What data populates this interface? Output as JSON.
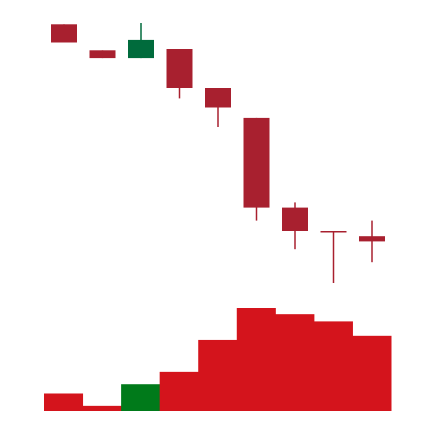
{
  "chart_data": {
    "type": "candlestick",
    "title": "",
    "xlabel": "",
    "ylabel": "",
    "grid": false,
    "legend": "none",
    "colors": {
      "up": "#006b3c",
      "down": "#a8202f",
      "volume_up": "#007a1a",
      "volume_down": "#d4141c"
    },
    "price_range": [
      0,
      100
    ],
    "candles": [
      {
        "open": 99.5,
        "high": 99.5,
        "low": 92.5,
        "close": 92.5
      },
      {
        "open": 89.5,
        "high": 89.5,
        "low": 86.5,
        "close": 86.5
      },
      {
        "open": 86.5,
        "high": 100.0,
        "low": 86.5,
        "close": 93.5
      },
      {
        "open": 90.0,
        "high": 90.0,
        "low": 71.0,
        "close": 75.0
      },
      {
        "open": 75.0,
        "high": 75.0,
        "low": 60.0,
        "close": 67.5
      },
      {
        "open": 63.5,
        "high": 63.5,
        "low": 24.0,
        "close": 29.0
      },
      {
        "open": 29.0,
        "high": 31.0,
        "low": 13.0,
        "close": 20.0
      },
      {
        "open": 20.0,
        "high": 20.0,
        "low": 0.0,
        "close": 20.0
      },
      {
        "open": 18.0,
        "high": 24.0,
        "low": 8.0,
        "close": 16.0
      }
    ],
    "volume_range": [
      0,
      100
    ],
    "volumes": [
      {
        "value": 17,
        "direction": "down"
      },
      {
        "value": 5,
        "direction": "down"
      },
      {
        "value": 26,
        "direction": "up"
      },
      {
        "value": 38,
        "direction": "down"
      },
      {
        "value": 69,
        "direction": "down"
      },
      {
        "value": 100,
        "direction": "down"
      },
      {
        "value": 94,
        "direction": "down"
      },
      {
        "value": 87,
        "direction": "down"
      },
      {
        "value": 73,
        "direction": "down"
      }
    ]
  }
}
